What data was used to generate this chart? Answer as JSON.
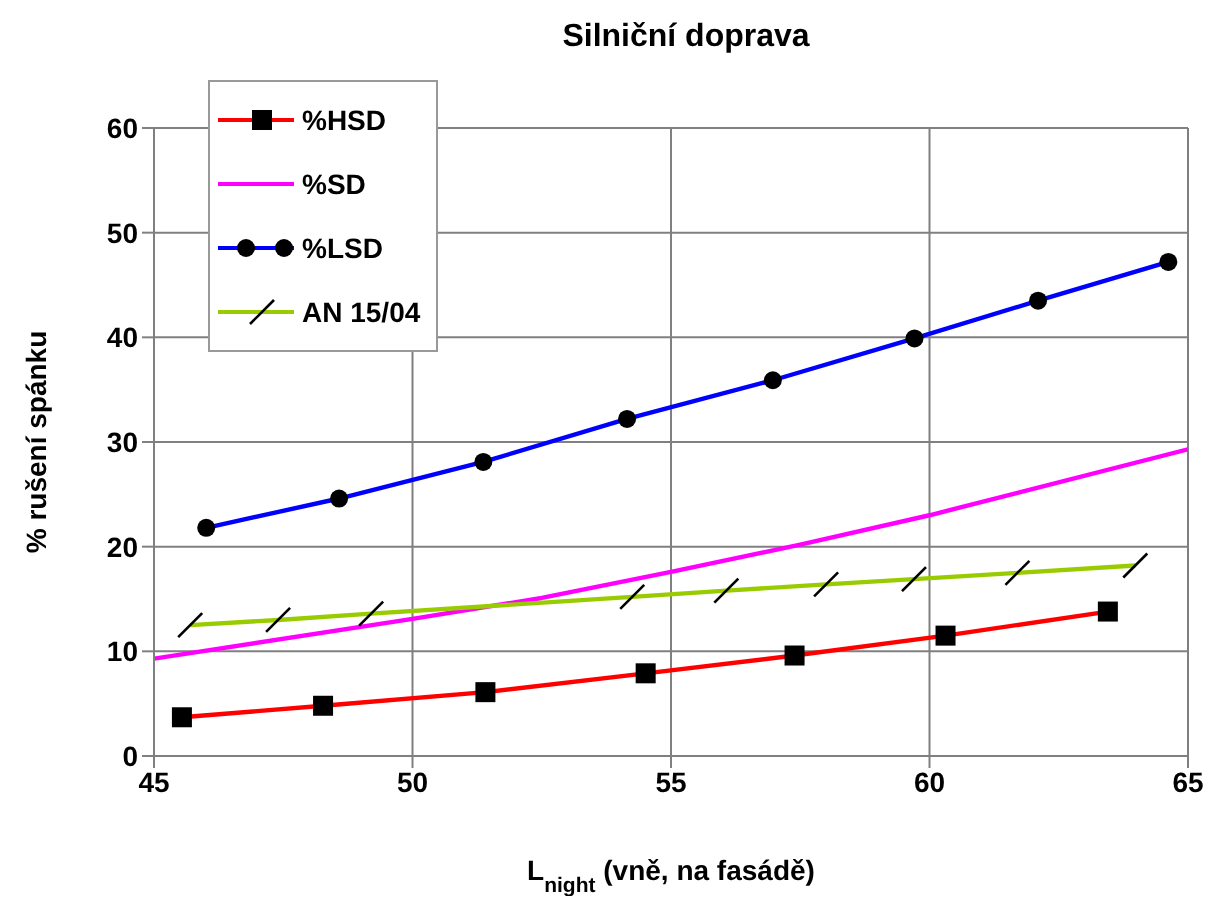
{
  "chart_data": {
    "type": "line",
    "title": "Silniční doprava",
    "xlabel": "L$_{night}$ (vně, na fasádě)",
    "ylabel": "% rušení spánku",
    "xlim": [
      45,
      65
    ],
    "xticks": [
      45,
      50,
      55,
      60,
      65
    ],
    "ylim": [
      0,
      60
    ],
    "yticks": [
      0,
      10,
      20,
      30,
      40,
      50,
      60
    ],
    "grid": true,
    "legend": "top left",
    "line_style": "solid",
    "series": [
      {
        "name": "%HSD",
        "color": "#ff0000",
        "marker": "square",
        "x": [
          45.54,
          48.27,
          51.41,
          54.51,
          57.39,
          60.31,
          63.45
        ],
        "values": [
          3.7,
          4.8,
          6.1,
          7.9,
          9.6,
          11.5,
          13.8
        ]
      },
      {
        "name": "%SD",
        "color": "#ff00ff",
        "marker": "none",
        "x": [
          45,
          50,
          52.5,
          55,
          57.5,
          60,
          65
        ],
        "values": [
          9.3,
          13.1,
          15.1,
          17.6,
          20.2,
          23.0,
          29.3
        ]
      },
      {
        "name": "%LSD",
        "color": "#0000ff",
        "marker": "circle",
        "x": [
          46.01,
          48.58,
          51.37,
          54.15,
          56.97,
          59.71,
          62.1,
          64.62
        ],
        "values": [
          21.8,
          24.6,
          28.1,
          32.2,
          35.9,
          39.9,
          43.5,
          47.2
        ]
      },
      {
        "name": "AN 15/04",
        "color": "#99cc00",
        "marker": "cross",
        "x": [
          45.7,
          47.4,
          49.2,
          54.25,
          56.07,
          58.0,
          59.7,
          61.7,
          63.98
        ],
        "values": [
          12.5,
          13.0,
          13.6,
          15.2,
          15.8,
          16.4,
          16.9,
          17.5,
          18.2
        ]
      }
    ]
  }
}
